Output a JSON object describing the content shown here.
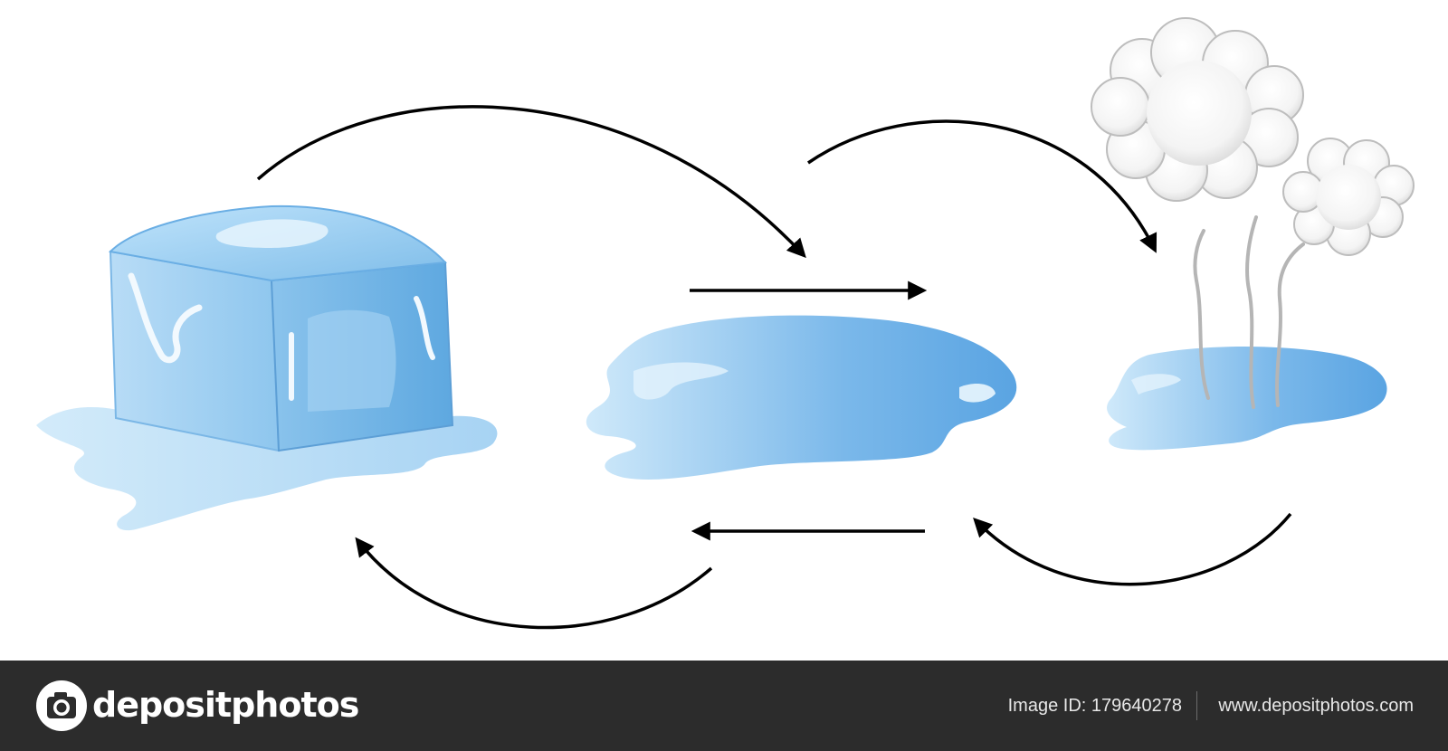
{
  "footer": {
    "brand": "depositphotos",
    "image_id": "Image ID: 179640278",
    "website": "www.depositphotos.com",
    "background_color": "#2c2c2c"
  },
  "diagram": {
    "states": [
      {
        "name": "solid",
        "depiction": "melting ice cube",
        "color": "#8cc4ec"
      },
      {
        "name": "liquid",
        "depiction": "water puddle",
        "color": "#6fb0e6"
      },
      {
        "name": "gas",
        "depiction": "steam clouds over small puddle",
        "color": "#d9d9d9"
      }
    ],
    "arrows": [
      {
        "from": "solid",
        "to": "liquid",
        "style": "curved"
      },
      {
        "from": "solid",
        "to": "liquid",
        "style": "straight"
      },
      {
        "from": "liquid",
        "to": "gas",
        "style": "curved"
      },
      {
        "from": "gas",
        "to": "liquid",
        "style": "curved"
      },
      {
        "from": "liquid",
        "to": "solid",
        "style": "straight"
      },
      {
        "from": "liquid",
        "to": "solid",
        "style": "curved"
      }
    ],
    "arrow_color": "#000000"
  }
}
